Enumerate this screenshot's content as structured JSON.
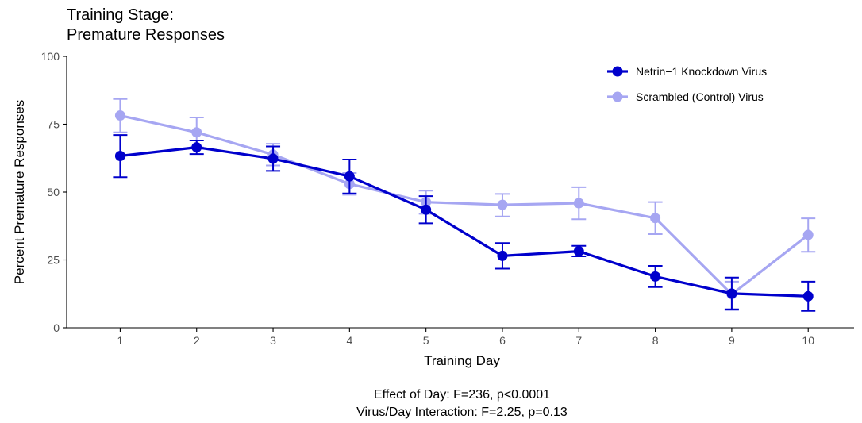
{
  "chart_data": {
    "type": "line",
    "title": [
      "Training Stage:",
      "Premature Responses"
    ],
    "xlabel": "Training Day",
    "ylabel": "Percent Premature Responses",
    "categories": [
      "1",
      "2",
      "3",
      "4",
      "5",
      "6",
      "7",
      "8",
      "9",
      "10"
    ],
    "x": [
      1,
      2,
      3,
      4,
      5,
      6,
      7,
      8,
      9,
      10
    ],
    "xlim": [
      0.3,
      10.6
    ],
    "ylim": [
      0,
      100
    ],
    "yticks": [
      0,
      25,
      50,
      75,
      100
    ],
    "grid": false,
    "legend_position": "top-right",
    "series": [
      {
        "name": "Netrin−1 Knockdown Virus",
        "color": "#0000cc",
        "values": [
          63.3,
          66.5,
          62.3,
          55.8,
          43.5,
          26.5,
          28.2,
          18.9,
          12.6,
          11.6
        ],
        "error_low": [
          55.5,
          64.0,
          57.8,
          49.5,
          38.5,
          21.8,
          26.3,
          15.0,
          6.8,
          6.2
        ],
        "error_high": [
          71.0,
          69.0,
          66.8,
          62.0,
          48.5,
          31.2,
          30.2,
          22.8,
          18.5,
          17.0
        ]
      },
      {
        "name": "Scrambled (Control) Virus",
        "color": "#a6a6f2",
        "values": [
          78.2,
          72.0,
          63.8,
          53.0,
          46.3,
          45.3,
          45.9,
          40.4,
          12.3,
          34.2
        ],
        "error_low": [
          72.0,
          66.5,
          59.8,
          49.0,
          42.0,
          41.0,
          40.0,
          34.5,
          6.5,
          28.0
        ],
        "error_high": [
          84.3,
          77.5,
          67.8,
          57.0,
          50.5,
          49.3,
          51.8,
          46.3,
          17.0,
          40.3
        ]
      }
    ],
    "annotations": [
      "Effect of Day: F=236, p<0.0001",
      "Virus/Day Interaction: F=2.25, p=0.13"
    ]
  }
}
